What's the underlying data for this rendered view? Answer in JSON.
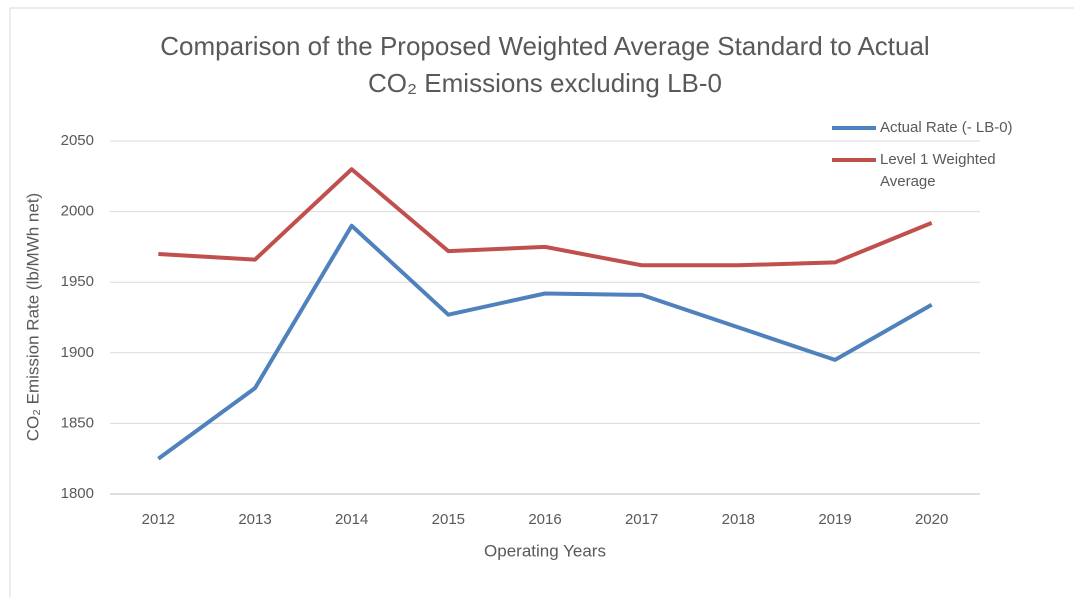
{
  "chart_data": {
    "type": "line",
    "title": [
      "Comparison of the Proposed Weighted Average Standard to Actual",
      "CO₂ Emissions excluding LB-0"
    ],
    "x_label": "Operating Years",
    "y_label": "CO₂ Emission Rate (lb/MWh net)",
    "categories": [
      "2012",
      "2013",
      "2014",
      "2015",
      "2016",
      "2017",
      "2018",
      "2019",
      "2020"
    ],
    "series": [
      {
        "name": "Actual Rate (- LB-0)",
        "color": "#4f81bd",
        "values": [
          1825,
          1875,
          1990,
          1927,
          1942,
          1941,
          1918,
          1895,
          1934
        ]
      },
      {
        "name": "Level 1 Weighted Average",
        "color": "#c0504d",
        "values": [
          1970,
          1966,
          2030,
          1972,
          1975,
          1962,
          1962,
          1964,
          1992
        ]
      }
    ],
    "ylim": [
      1800,
      2050
    ],
    "yticks": [
      1800,
      1850,
      1900,
      1950,
      2000,
      2050
    ],
    "grid": true,
    "legend": "top-right"
  }
}
